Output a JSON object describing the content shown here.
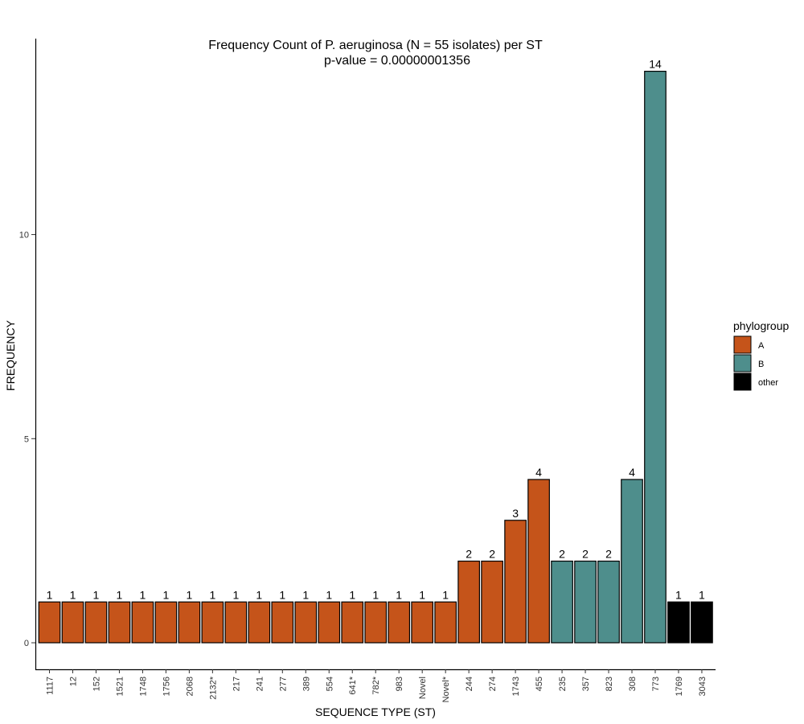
{
  "chart_data": {
    "type": "bar",
    "title": "Frequency Count of P. aeruginosa (N = 55 isolates) per ST",
    "subtitle": "p-value = 0.00000001356",
    "xlabel": "SEQUENCE TYPE (ST)",
    "ylabel": "FREQUENCY",
    "ylim": [
      -0.65,
      14.8
    ],
    "yticks": [
      0,
      5,
      10
    ],
    "grid": false,
    "legend": {
      "title": "phylogroup",
      "placement": "right",
      "entries": [
        {
          "name": "A",
          "color": "#C5541A"
        },
        {
          "name": "B",
          "color": "#4E8E8C"
        },
        {
          "name": "other",
          "color": "#000000"
        }
      ]
    },
    "categories": [
      "1117",
      "12",
      "152",
      "1521",
      "1748",
      "1756",
      "2068",
      "2132*",
      "217",
      "241",
      "277",
      "389",
      "554",
      "641*",
      "782*",
      "983",
      "Novel",
      "Novel*",
      "244",
      "274",
      "1743",
      "455",
      "235",
      "357",
      "823",
      "308",
      "773",
      "1769",
      "3043"
    ],
    "values": [
      1,
      1,
      1,
      1,
      1,
      1,
      1,
      1,
      1,
      1,
      1,
      1,
      1,
      1,
      1,
      1,
      1,
      1,
      2,
      2,
      3,
      4,
      2,
      2,
      2,
      4,
      14,
      1,
      1
    ],
    "groups": [
      "A",
      "A",
      "A",
      "A",
      "A",
      "A",
      "A",
      "A",
      "A",
      "A",
      "A",
      "A",
      "A",
      "A",
      "A",
      "A",
      "A",
      "A",
      "A",
      "A",
      "A",
      "A",
      "B",
      "B",
      "B",
      "B",
      "B",
      "other",
      "other"
    ]
  }
}
